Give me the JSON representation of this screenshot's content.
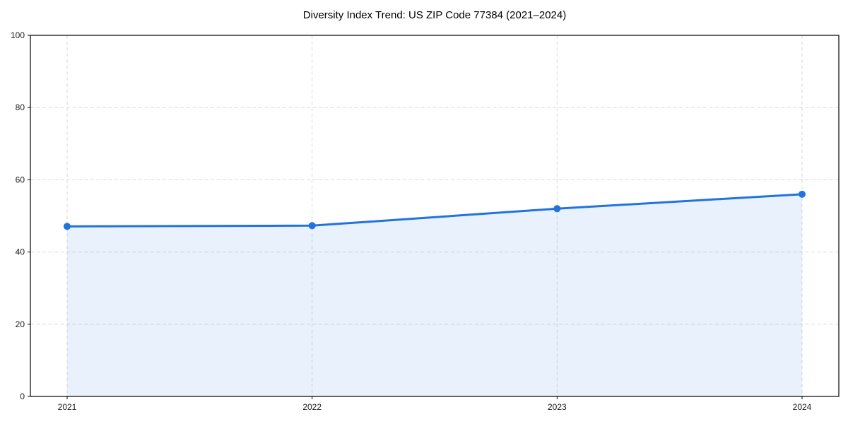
{
  "chart_data": {
    "type": "area",
    "title": "Diversity Index Trend: US ZIP Code 77384 (2021–2024)",
    "x_tick_labels": [
      "2021",
      "2022",
      "2023",
      "2024"
    ],
    "x": [
      2021,
      2022,
      2023,
      2024
    ],
    "values": [
      47.1,
      47.3,
      52.0,
      56.0
    ],
    "series_name": "Diversity Index",
    "xlabel": "",
    "ylabel": "",
    "ylim": [
      0,
      100
    ],
    "yticks": [
      0,
      20,
      40,
      60,
      80,
      100
    ],
    "x_margin_fraction": 0.05,
    "grid": true,
    "grid_linestyle": "dashed",
    "legend": "none",
    "colors": {
      "line": "#2173dd",
      "marker": "#2173dd",
      "fill": "#2173dd",
      "grid": "#dadada",
      "axis": "#000000",
      "tick_label": "#1a1a1a",
      "background": "#ffffff"
    },
    "fill_opacity": 0.1
  }
}
